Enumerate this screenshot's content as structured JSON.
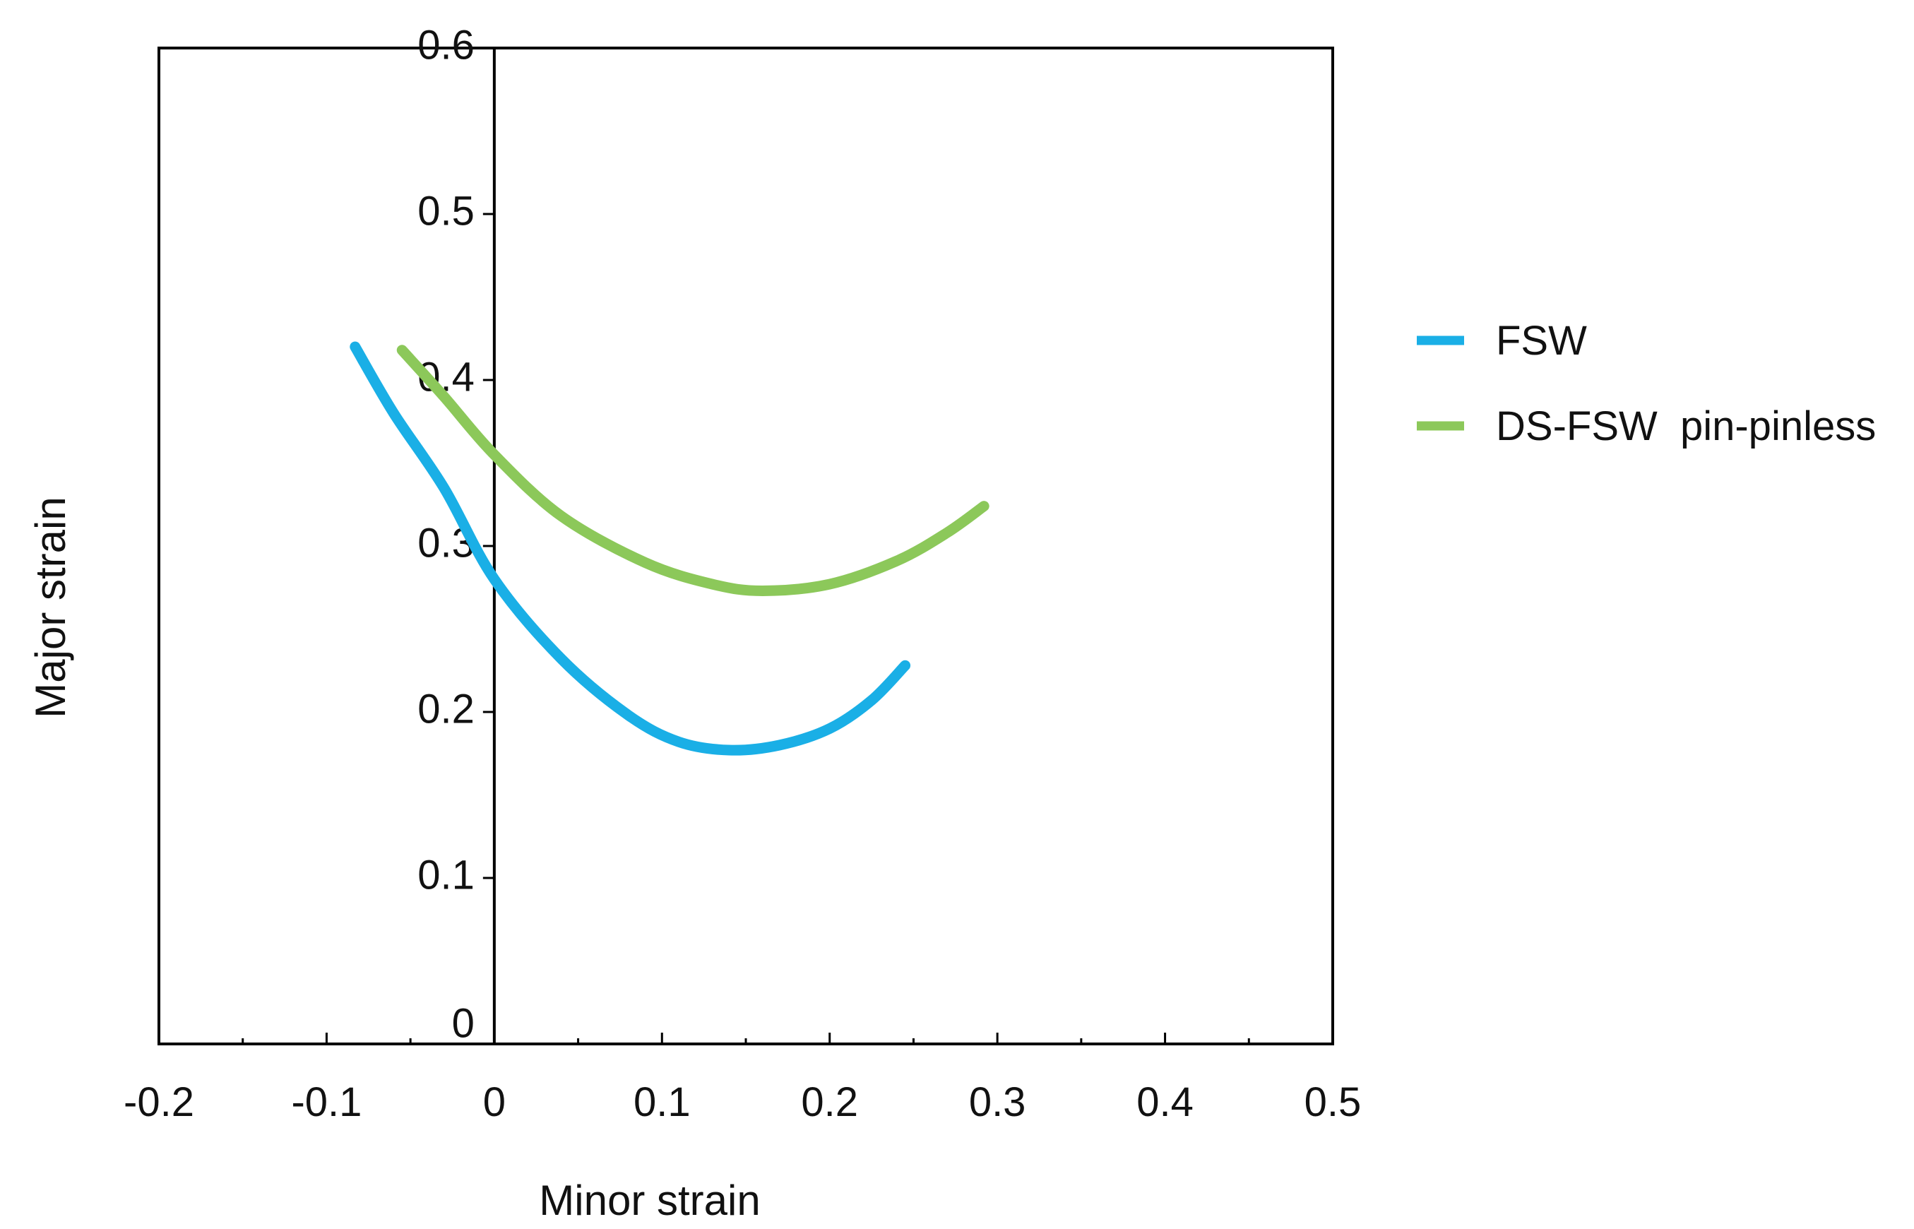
{
  "chart_data": {
    "type": "line",
    "title": "",
    "xlabel": "Minor strain",
    "ylabel": "Major strain",
    "xlim": [
      -0.2,
      0.5
    ],
    "ylim": [
      0,
      0.6
    ],
    "x_ticks": [
      "-0.2",
      "-0.1",
      "0",
      "0.1",
      "0.2",
      "0.3",
      "0.4",
      "0.5"
    ],
    "y_ticks": [
      "0",
      "0.1",
      "0.2",
      "0.3",
      "0.4",
      "0.5",
      "0.6"
    ],
    "grid": false,
    "legend_position": "right",
    "series": [
      {
        "name": "FSW",
        "color": "#1AAFE6",
        "points": [
          [
            -0.083,
            0.42
          ],
          [
            -0.06,
            0.38
          ],
          [
            -0.03,
            0.335
          ],
          [
            0.0,
            0.28
          ],
          [
            0.04,
            0.232
          ],
          [
            0.08,
            0.198
          ],
          [
            0.11,
            0.182
          ],
          [
            0.14,
            0.177
          ],
          [
            0.17,
            0.18
          ],
          [
            0.2,
            0.19
          ],
          [
            0.225,
            0.207
          ],
          [
            0.245,
            0.228
          ]
        ]
      },
      {
        "name": "DS-FSW  pin-pinless",
        "color": "#8CC85A",
        "points": [
          [
            -0.055,
            0.418
          ],
          [
            -0.03,
            0.39
          ],
          [
            0.0,
            0.355
          ],
          [
            0.04,
            0.318
          ],
          [
            0.09,
            0.29
          ],
          [
            0.13,
            0.277
          ],
          [
            0.16,
            0.273
          ],
          [
            0.2,
            0.277
          ],
          [
            0.24,
            0.291
          ],
          [
            0.27,
            0.308
          ],
          [
            0.292,
            0.324
          ]
        ]
      }
    ]
  }
}
